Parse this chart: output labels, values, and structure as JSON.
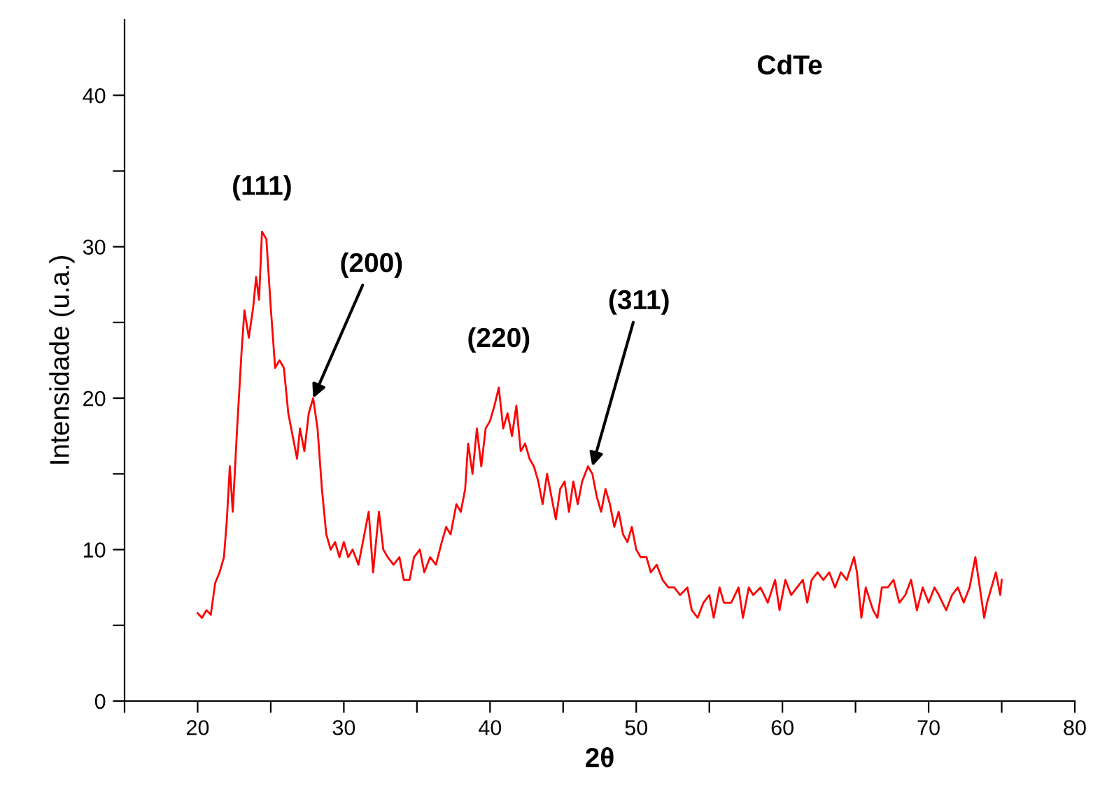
{
  "chart_data": {
    "type": "line",
    "xlabel": "2θ",
    "ylabel": "Intensidade (u.a.)",
    "xlim": [
      15,
      80
    ],
    "ylim": [
      0,
      45
    ],
    "xticks": [
      {
        "value": 15,
        "label": null
      },
      20,
      {
        "value": 25,
        "label": null
      },
      30,
      {
        "value": 35,
        "label": null
      },
      40,
      {
        "value": 45,
        "label": null
      },
      50,
      {
        "value": 55,
        "label": null
      },
      60,
      {
        "value": 65,
        "label": null
      },
      70,
      {
        "value": 75,
        "label": null
      },
      80
    ],
    "yticks": [
      0,
      {
        "value": 5,
        "label": null
      },
      10,
      {
        "value": 15,
        "label": null
      },
      20,
      {
        "value": 25,
        "label": null
      },
      30,
      {
        "value": 35,
        "label": null
      },
      40
    ],
    "grid": false,
    "legend": false,
    "marker": "none",
    "line_style": "solid",
    "annotations": [
      "CdTe",
      {
        "text": "(111)",
        "x": 24.4,
        "y": 31
      },
      {
        "text": "(200)",
        "x": 27.9,
        "y": 20
      },
      {
        "text": "(220)",
        "x": 40.6,
        "y": 20.7
      },
      {
        "text": "(311)",
        "x": 47,
        "y": 15.5
      }
    ],
    "series": [
      {
        "color": "#ff0000",
        "x": [
          20.0,
          20.3,
          20.6,
          20.9,
          21.2,
          21.5,
          21.8,
          22.0,
          22.2,
          22.4,
          22.7,
          23.0,
          23.2,
          23.5,
          23.8,
          24.0,
          24.2,
          24.4,
          24.7,
          25.0,
          25.3,
          25.6,
          25.9,
          26.2,
          26.5,
          26.8,
          27.0,
          27.3,
          27.6,
          27.9,
          28.2,
          28.5,
          28.8,
          29.1,
          29.4,
          29.7,
          30.0,
          30.3,
          30.6,
          31.0,
          31.4,
          31.7,
          32.0,
          32.4,
          32.7,
          33.0,
          33.4,
          33.8,
          34.1,
          34.5,
          34.8,
          35.2,
          35.5,
          35.9,
          36.3,
          36.7,
          37.0,
          37.3,
          37.7,
          38.0,
          38.3,
          38.5,
          38.8,
          39.1,
          39.4,
          39.7,
          40.0,
          40.3,
          40.6,
          40.9,
          41.2,
          41.5,
          41.8,
          42.1,
          42.4,
          42.7,
          43.0,
          43.3,
          43.6,
          43.9,
          44.2,
          44.5,
          44.8,
          45.1,
          45.4,
          45.7,
          46.0,
          46.3,
          46.7,
          47.0,
          47.3,
          47.6,
          47.9,
          48.2,
          48.5,
          48.8,
          49.1,
          49.4,
          49.7,
          50.0,
          50.3,
          50.7,
          51.0,
          51.4,
          51.8,
          52.2,
          52.6,
          53.0,
          53.5,
          53.8,
          54.2,
          54.6,
          55.0,
          55.3,
          55.7,
          56.0,
          56.5,
          57.0,
          57.3,
          57.7,
          58.0,
          58.5,
          59.0,
          59.5,
          59.8,
          60.2,
          60.6,
          61.0,
          61.4,
          61.7,
          62.0,
          62.4,
          62.8,
          63.2,
          63.6,
          64.0,
          64.4,
          64.9,
          65.1,
          65.4,
          65.7,
          66.2,
          66.5,
          66.8,
          67.2,
          67.6,
          68.0,
          68.4,
          68.8,
          69.2,
          69.6,
          70.0,
          70.4,
          70.7,
          71.2,
          71.6,
          72.0,
          72.4,
          72.8,
          73.2,
          73.5,
          73.8,
          74.0,
          74.3,
          74.6,
          74.9,
          75.0
        ],
        "values": [
          5.8,
          5.5,
          6.0,
          5.7,
          7.8,
          8.5,
          9.5,
          12.0,
          15.5,
          12.5,
          18,
          23,
          25.8,
          24,
          26,
          28,
          26.5,
          31,
          30.5,
          26,
          22,
          22.5,
          22,
          19,
          17.5,
          16,
          18,
          16.5,
          19,
          20,
          18,
          14,
          11,
          10,
          10.5,
          9.5,
          10.5,
          9.5,
          10,
          9.0,
          11,
          12.5,
          8.5,
          12.5,
          10,
          9.5,
          9,
          9.5,
          8,
          8.0,
          9.5,
          10,
          8.5,
          9.5,
          9.0,
          10.5,
          11.5,
          11,
          13,
          12.5,
          14,
          17,
          15,
          18,
          15.5,
          18,
          18.5,
          19.5,
          20.7,
          18,
          19,
          17.5,
          19.5,
          16.5,
          17,
          16,
          15.5,
          14.5,
          13,
          15,
          13.5,
          12,
          14,
          14.5,
          12.5,
          14.5,
          13,
          14.5,
          15.5,
          15,
          13.5,
          12.5,
          14,
          13,
          11.5,
          12.5,
          11,
          10.5,
          11.5,
          10,
          9.5,
          9.5,
          8.5,
          9,
          8,
          7.5,
          7.5,
          7.0,
          7.5,
          6.0,
          5.5,
          6.5,
          7.0,
          5.5,
          7.5,
          6.5,
          6.5,
          7.5,
          5.5,
          7.5,
          7.0,
          7.5,
          6.5,
          8.0,
          6.0,
          8.0,
          7.0,
          7.5,
          8.0,
          6.5,
          8.0,
          8.5,
          8.0,
          8.5,
          7.5,
          8.5,
          8.0,
          9.5,
          8.5,
          5.5,
          7.5,
          6.0,
          5.5,
          7.5,
          7.5,
          8.0,
          6.5,
          7.0,
          8.0,
          6.0,
          7.5,
          6.5,
          7.5,
          7.0,
          6.0,
          7.0,
          7.5,
          6.5,
          7.5,
          9.5,
          7.5,
          5.5,
          6.5,
          7.5,
          8.5,
          7.0,
          8.0
        ]
      }
    ]
  }
}
